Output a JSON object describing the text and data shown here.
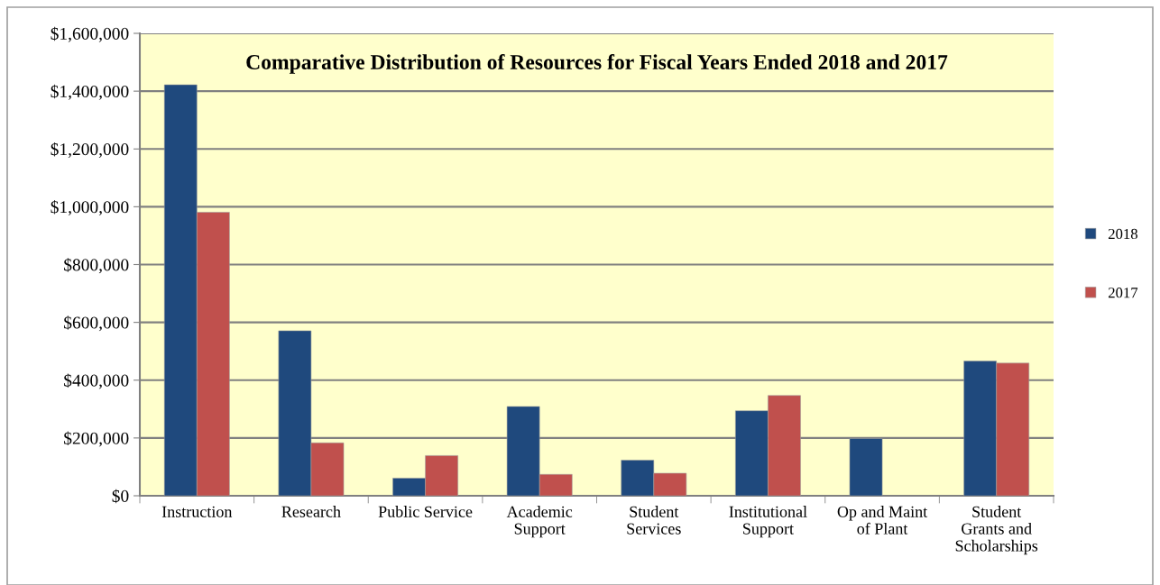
{
  "chart_data": {
    "type": "bar",
    "title": "Comparative Distribution of Resources for Fiscal Years Ended 2018 and 2017",
    "categories": [
      "Instruction",
      "Research",
      "Public Service",
      "Academic\nSupport",
      "Student\nServices",
      "Institutional\nSupport",
      "Op and Maint\nof Plant",
      "Student\nGrants and\nScholarships"
    ],
    "series": [
      {
        "name": "2018",
        "color": "#1f497d",
        "values": [
          1422000,
          571000,
          61000,
          309000,
          123000,
          294000,
          198000,
          466000
        ]
      },
      {
        "name": "2017",
        "color": "#c0504d",
        "values": [
          981000,
          183000,
          139000,
          74000,
          78000,
          347000,
          null,
          459000
        ]
      }
    ],
    "ylim": [
      0,
      1600000
    ],
    "yticks": [
      {
        "value": 0,
        "label": "$0"
      },
      {
        "value": 200000,
        "label": "$200,000"
      },
      {
        "value": 400000,
        "label": "$400,000"
      },
      {
        "value": 600000,
        "label": "$600,000"
      },
      {
        "value": 800000,
        "label": "$800,000"
      },
      {
        "value": 1000000,
        "label": "$1,000,000"
      },
      {
        "value": 1200000,
        "label": "$1,200,000"
      },
      {
        "value": 1400000,
        "label": "$1,400,000"
      },
      {
        "value": 1600000,
        "label": "$1,600,000"
      }
    ],
    "grid": "y",
    "legend": "right"
  }
}
